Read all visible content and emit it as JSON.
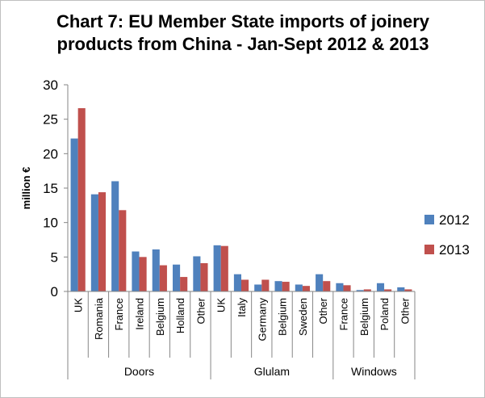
{
  "chart_data": {
    "type": "bar",
    "title_lines": [
      "Chart 7: EU Member State imports of joinery",
      "products from China - Jan-Sept 2012 & 2013"
    ],
    "ylabel": "million €",
    "xlabel": "",
    "ylim": [
      0,
      30
    ],
    "yticks": [
      0,
      5,
      10,
      15,
      20,
      25,
      30
    ],
    "grid": false,
    "legend_position": "right",
    "groups": [
      {
        "label": "Doors",
        "categories": [
          "UK",
          "Romania",
          "France",
          "Ireland",
          "Belgium",
          "Holland",
          "Other"
        ]
      },
      {
        "label": "Glulam",
        "categories": [
          "UK",
          "Italy",
          "Germany",
          "Belgium",
          "Sweden",
          "Other"
        ]
      },
      {
        "label": "Windows",
        "categories": [
          "France",
          "Belgium",
          "Poland",
          "Other"
        ]
      }
    ],
    "series": [
      {
        "name": "2012",
        "color": "#4f81bd",
        "values": [
          22.2,
          14.1,
          16.0,
          5.8,
          6.1,
          3.9,
          5.1,
          6.7,
          2.5,
          1.0,
          1.5,
          1.0,
          2.5,
          1.2,
          0.2,
          1.2,
          0.6
        ]
      },
      {
        "name": "2013",
        "color": "#c0504d",
        "values": [
          26.6,
          14.4,
          11.8,
          5.0,
          3.8,
          2.1,
          4.1,
          6.6,
          1.7,
          1.7,
          1.4,
          0.8,
          1.5,
          0.9,
          0.3,
          0.3,
          0.3
        ]
      }
    ]
  }
}
